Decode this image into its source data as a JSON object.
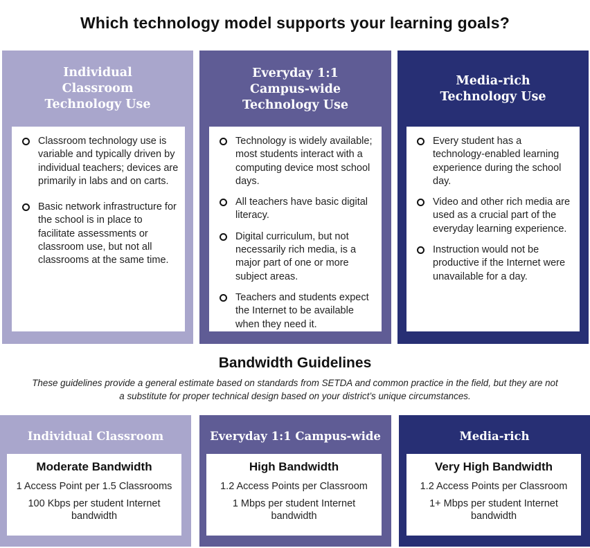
{
  "title": "Which technology model supports your learning goals?",
  "models": [
    {
      "heading": [
        "Individual",
        "Classroom",
        "Technology Use"
      ],
      "bullets": [
        "Classroom technology use is variable and typically driven by individual teachers; devices are primarily in labs and on carts.",
        "Basic network infrastructure for the school is in place to facilitate assessments or classroom use, but not all classrooms at the same time."
      ]
    },
    {
      "heading": [
        "Everyday 1:1",
        "Campus-wide",
        "Technology Use"
      ],
      "bullets": [
        "Technology is widely available; most students interact with a computing device most school days.",
        "All teachers have basic digital literacy.",
        "Digital curriculum, but not necessarily rich media, is a major part of one or more subject areas.",
        "Teachers and students expect the Internet to be available when they need it."
      ]
    },
    {
      "heading": [
        "Media-rich",
        "Technology Use"
      ],
      "bullets": [
        "Every student has a technology-enabled learning experience during the school day.",
        "Video and other rich media are used as a crucial part of the everyday learning experience.",
        "Instruction would not be productive if the Internet were unavailable for a day."
      ]
    }
  ],
  "bandwidth": {
    "title": "Bandwidth Guidelines",
    "note_line1": "These guidelines provide a general estimate based on standards from SETDA and common practice in the field, but they are not",
    "note_line2": "a substitute for proper technical design based on your district’s unique circumstances.",
    "tiers": [
      {
        "heading": "Individual Classroom",
        "level": "Moderate Bandwidth",
        "access_points": "1 Access Point per 1.5 Classrooms",
        "internet": [
          "100 Kbps per student Internet",
          "bandwidth"
        ]
      },
      {
        "heading": "Everyday 1:1 Campus-wide",
        "level": "High Bandwidth",
        "access_points": "1.2 Access Points per Classroom",
        "internet": [
          "1 Mbps per student Internet",
          "bandwidth"
        ]
      },
      {
        "heading": "Media-rich",
        "level": "Very High Bandwidth",
        "access_points": "1.2 Access Points per Classroom",
        "internet": [
          "1+ Mbps per student Internet",
          "bandwidth"
        ]
      }
    ]
  }
}
